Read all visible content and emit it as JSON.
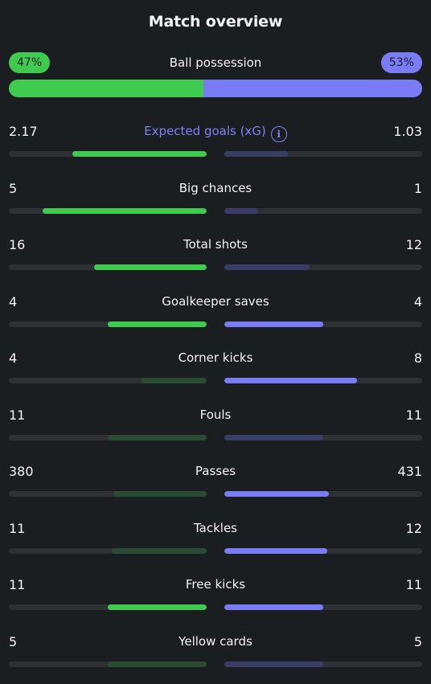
{
  "title": "Match overview",
  "colors": {
    "home_strong": "#3fcb4f",
    "home_weak": "#2a4b33",
    "away_strong": "#7a7cf6",
    "away_weak": "#3a3d66"
  },
  "possession": {
    "label": "Ball possession",
    "home": "47%",
    "away": "53%",
    "home_fraction": 0.47
  },
  "stats": [
    {
      "label": "Expected goals (xG)",
      "home": "2.17",
      "away": "1.03",
      "home_fill": 0.68,
      "away_fill": 0.32,
      "home_strong": true,
      "away_strong": false,
      "info_icon": "info-icon",
      "highlight": true
    },
    {
      "label": "Big chances",
      "home": "5",
      "away": "1",
      "home_fill": 0.83,
      "away_fill": 0.17,
      "home_strong": true,
      "away_strong": false
    },
    {
      "label": "Total shots",
      "home": "16",
      "away": "12",
      "home_fill": 0.57,
      "away_fill": 0.43,
      "home_strong": true,
      "away_strong": false
    },
    {
      "label": "Goalkeeper saves",
      "home": "4",
      "away": "4",
      "home_fill": 0.5,
      "away_fill": 0.5,
      "home_strong": true,
      "away_strong": true
    },
    {
      "label": "Corner kicks",
      "home": "4",
      "away": "8",
      "home_fill": 0.33,
      "away_fill": 0.67,
      "home_strong": false,
      "away_strong": true
    },
    {
      "label": "Fouls",
      "home": "11",
      "away": "11",
      "home_fill": 0.5,
      "away_fill": 0.5,
      "home_strong": false,
      "away_strong": false
    },
    {
      "label": "Passes",
      "home": "380",
      "away": "431",
      "home_fill": 0.47,
      "away_fill": 0.53,
      "home_strong": false,
      "away_strong": true
    },
    {
      "label": "Tackles",
      "home": "11",
      "away": "12",
      "home_fill": 0.48,
      "away_fill": 0.52,
      "home_strong": false,
      "away_strong": true
    },
    {
      "label": "Free kicks",
      "home": "11",
      "away": "11",
      "home_fill": 0.5,
      "away_fill": 0.5,
      "home_strong": true,
      "away_strong": true
    },
    {
      "label": "Yellow cards",
      "home": "5",
      "away": "5",
      "home_fill": 0.5,
      "away_fill": 0.5,
      "home_strong": false,
      "away_strong": false
    }
  ]
}
